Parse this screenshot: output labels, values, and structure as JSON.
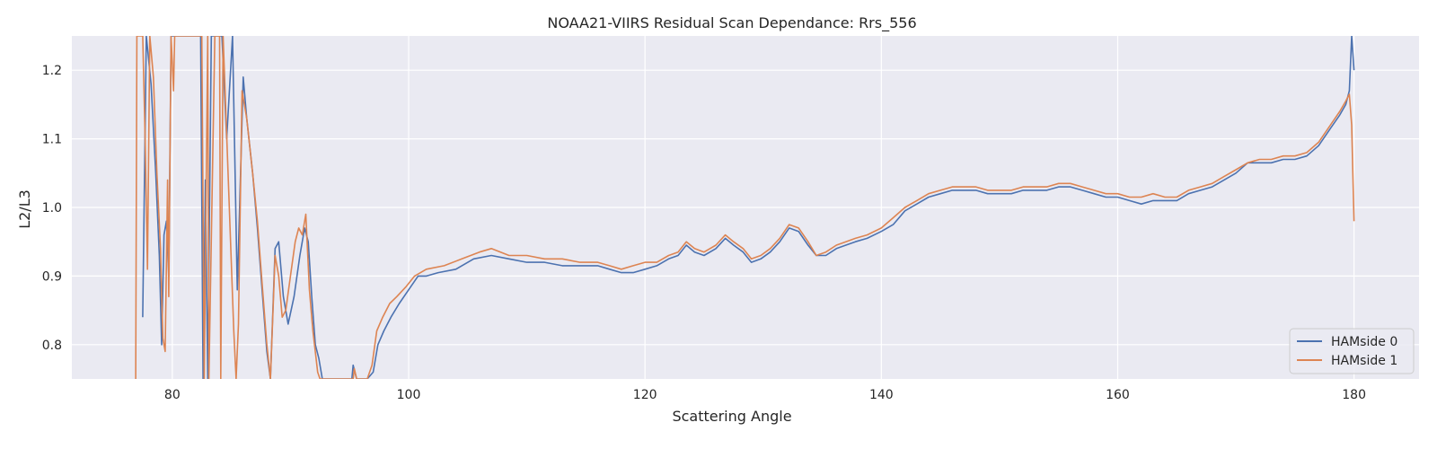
{
  "chart_data": {
    "type": "line",
    "title": "NOAA21-VIIRS Residual Scan Dependance: Rrs_556",
    "xlabel": "Scattering Angle",
    "ylabel": "L2/L3",
    "xlim": [
      71.5,
      185.5
    ],
    "ylim": [
      0.75,
      1.25
    ],
    "xticks": [
      80,
      100,
      120,
      140,
      160,
      180
    ],
    "yticks": [
      0.8,
      0.9,
      1.0,
      1.1,
      1.2
    ],
    "xtick_labels": [
      "80",
      "100",
      "120",
      "140",
      "160",
      "180"
    ],
    "ytick_labels": [
      "0.8",
      "0.9",
      "1.0",
      "1.1",
      "1.2"
    ],
    "grid": true,
    "legend_position": "lower-right",
    "background_color": "#eaeaf2",
    "series": [
      {
        "name": "HAMside 0",
        "color": "#4c72b0",
        "points": [
          [
            77.5,
            0.84
          ],
          [
            77.8,
            1.25
          ],
          [
            78.2,
            1.18
          ],
          [
            78.6,
            1.05
          ],
          [
            78.9,
            0.93
          ],
          [
            79.1,
            0.8
          ],
          [
            79.3,
            0.96
          ],
          [
            79.5,
            0.98
          ],
          [
            79.7,
            0.9
          ],
          [
            79.9,
            1.25
          ],
          [
            80.2,
            1.25
          ],
          [
            82.4,
            1.25
          ],
          [
            82.6,
            0.75
          ],
          [
            82.8,
            1.04
          ],
          [
            83.0,
            0.75
          ],
          [
            83.3,
            1.25
          ],
          [
            84.2,
            1.25
          ],
          [
            84.6,
            1.1
          ],
          [
            85.1,
            1.25
          ],
          [
            85.5,
            0.88
          ],
          [
            85.7,
            1.0
          ],
          [
            86.0,
            1.19
          ],
          [
            86.3,
            1.13
          ],
          [
            86.8,
            1.05
          ],
          [
            87.2,
            0.97
          ],
          [
            87.6,
            0.88
          ],
          [
            88.0,
            0.79
          ],
          [
            88.3,
            0.75
          ],
          [
            88.7,
            0.94
          ],
          [
            89.0,
            0.95
          ],
          [
            89.4,
            0.87
          ],
          [
            89.8,
            0.83
          ],
          [
            90.3,
            0.87
          ],
          [
            90.8,
            0.93
          ],
          [
            91.2,
            0.97
          ],
          [
            91.5,
            0.95
          ],
          [
            91.8,
            0.87
          ],
          [
            92.1,
            0.8
          ],
          [
            92.4,
            0.78
          ],
          [
            92.7,
            0.75
          ],
          [
            95.2,
            0.75
          ],
          [
            95.3,
            0.77
          ],
          [
            95.6,
            0.75
          ],
          [
            96.5,
            0.75
          ],
          [
            97.0,
            0.76
          ],
          [
            97.4,
            0.8
          ],
          [
            97.9,
            0.82
          ],
          [
            98.5,
            0.84
          ],
          [
            99.2,
            0.86
          ],
          [
            100.0,
            0.88
          ],
          [
            100.8,
            0.9
          ],
          [
            101.5,
            0.9
          ],
          [
            102.5,
            0.905
          ],
          [
            104.0,
            0.91
          ],
          [
            105.5,
            0.925
          ],
          [
            107.0,
            0.93
          ],
          [
            108.5,
            0.925
          ],
          [
            110.0,
            0.92
          ],
          [
            111.5,
            0.92
          ],
          [
            113.0,
            0.915
          ],
          [
            114.5,
            0.915
          ],
          [
            116.0,
            0.915
          ],
          [
            117.0,
            0.91
          ],
          [
            118.0,
            0.905
          ],
          [
            119.0,
            0.905
          ],
          [
            120.0,
            0.91
          ],
          [
            121.0,
            0.915
          ],
          [
            122.0,
            0.925
          ],
          [
            122.8,
            0.93
          ],
          [
            123.5,
            0.945
          ],
          [
            124.2,
            0.935
          ],
          [
            125.0,
            0.93
          ],
          [
            126.0,
            0.94
          ],
          [
            126.8,
            0.955
          ],
          [
            127.5,
            0.945
          ],
          [
            128.3,
            0.935
          ],
          [
            129.0,
            0.92
          ],
          [
            129.8,
            0.925
          ],
          [
            130.6,
            0.935
          ],
          [
            131.4,
            0.95
          ],
          [
            132.2,
            0.97
          ],
          [
            133.0,
            0.965
          ],
          [
            133.8,
            0.945
          ],
          [
            134.5,
            0.93
          ],
          [
            135.3,
            0.93
          ],
          [
            136.2,
            0.94
          ],
          [
            137.0,
            0.945
          ],
          [
            137.8,
            0.95
          ],
          [
            138.8,
            0.955
          ],
          [
            140.0,
            0.965
          ],
          [
            141.0,
            0.975
          ],
          [
            142.0,
            0.995
          ],
          [
            143.0,
            1.005
          ],
          [
            144.0,
            1.015
          ],
          [
            145.0,
            1.02
          ],
          [
            146.0,
            1.025
          ],
          [
            147.0,
            1.025
          ],
          [
            148.0,
            1.025
          ],
          [
            149.0,
            1.02
          ],
          [
            150.0,
            1.02
          ],
          [
            151.0,
            1.02
          ],
          [
            152.0,
            1.025
          ],
          [
            153.0,
            1.025
          ],
          [
            154.0,
            1.025
          ],
          [
            155.0,
            1.03
          ],
          [
            156.0,
            1.03
          ],
          [
            157.0,
            1.025
          ],
          [
            158.0,
            1.02
          ],
          [
            159.0,
            1.015
          ],
          [
            160.0,
            1.015
          ],
          [
            161.0,
            1.01
          ],
          [
            162.0,
            1.005
          ],
          [
            163.0,
            1.01
          ],
          [
            164.0,
            1.01
          ],
          [
            165.0,
            1.01
          ],
          [
            166.0,
            1.02
          ],
          [
            167.0,
            1.025
          ],
          [
            168.0,
            1.03
          ],
          [
            169.0,
            1.04
          ],
          [
            170.0,
            1.05
          ],
          [
            171.0,
            1.065
          ],
          [
            172.0,
            1.065
          ],
          [
            173.0,
            1.065
          ],
          [
            174.0,
            1.07
          ],
          [
            175.0,
            1.07
          ],
          [
            176.0,
            1.075
          ],
          [
            177.0,
            1.09
          ],
          [
            178.0,
            1.115
          ],
          [
            178.8,
            1.135
          ],
          [
            179.3,
            1.15
          ],
          [
            179.6,
            1.17
          ],
          [
            179.8,
            1.25
          ],
          [
            180.0,
            1.2
          ]
        ]
      },
      {
        "name": "HAMside 1",
        "color": "#dd8452",
        "points": [
          [
            76.9,
            0.75
          ],
          [
            77.0,
            1.25
          ],
          [
            77.5,
            1.25
          ],
          [
            77.7,
            1.1
          ],
          [
            77.9,
            0.91
          ],
          [
            78.1,
            1.25
          ],
          [
            78.4,
            1.19
          ],
          [
            78.7,
            1.05
          ],
          [
            79.0,
            0.94
          ],
          [
            79.2,
            0.81
          ],
          [
            79.4,
            0.79
          ],
          [
            79.6,
            1.04
          ],
          [
            79.7,
            0.87
          ],
          [
            79.9,
            1.25
          ],
          [
            80.1,
            1.17
          ],
          [
            80.2,
            1.25
          ],
          [
            82.5,
            1.25
          ],
          [
            82.7,
            0.75
          ],
          [
            83.0,
            1.25
          ],
          [
            83.1,
            0.75
          ],
          [
            83.6,
            1.25
          ],
          [
            84.0,
            1.25
          ],
          [
            84.1,
            0.75
          ],
          [
            84.3,
            1.25
          ],
          [
            85.2,
            0.82
          ],
          [
            85.4,
            0.75
          ],
          [
            85.6,
            0.83
          ],
          [
            85.9,
            1.17
          ],
          [
            86.3,
            1.13
          ],
          [
            86.8,
            1.05
          ],
          [
            87.2,
            0.98
          ],
          [
            87.6,
            0.89
          ],
          [
            88.0,
            0.8
          ],
          [
            88.3,
            0.75
          ],
          [
            88.7,
            0.93
          ],
          [
            89.0,
            0.9
          ],
          [
            89.3,
            0.84
          ],
          [
            89.6,
            0.85
          ],
          [
            90.0,
            0.9
          ],
          [
            90.4,
            0.95
          ],
          [
            90.7,
            0.97
          ],
          [
            91.0,
            0.96
          ],
          [
            91.3,
            0.99
          ],
          [
            91.6,
            0.88
          ],
          [
            91.9,
            0.82
          ],
          [
            92.3,
            0.76
          ],
          [
            92.5,
            0.75
          ],
          [
            95.3,
            0.75
          ],
          [
            95.4,
            0.765
          ],
          [
            95.6,
            0.75
          ],
          [
            96.5,
            0.75
          ],
          [
            96.9,
            0.77
          ],
          [
            97.3,
            0.82
          ],
          [
            97.8,
            0.84
          ],
          [
            98.4,
            0.86
          ],
          [
            99.0,
            0.87
          ],
          [
            99.8,
            0.885
          ],
          [
            100.5,
            0.9
          ],
          [
            101.5,
            0.91
          ],
          [
            103.0,
            0.915
          ],
          [
            104.5,
            0.925
          ],
          [
            106.0,
            0.935
          ],
          [
            107.0,
            0.94
          ],
          [
            108.5,
            0.93
          ],
          [
            110.0,
            0.93
          ],
          [
            111.5,
            0.925
          ],
          [
            113.0,
            0.925
          ],
          [
            114.5,
            0.92
          ],
          [
            116.0,
            0.92
          ],
          [
            117.0,
            0.915
          ],
          [
            118.0,
            0.91
          ],
          [
            119.0,
            0.915
          ],
          [
            120.0,
            0.92
          ],
          [
            121.0,
            0.92
          ],
          [
            122.0,
            0.93
          ],
          [
            122.8,
            0.935
          ],
          [
            123.5,
            0.95
          ],
          [
            124.2,
            0.94
          ],
          [
            125.0,
            0.935
          ],
          [
            126.0,
            0.945
          ],
          [
            126.8,
            0.96
          ],
          [
            127.5,
            0.95
          ],
          [
            128.3,
            0.94
          ],
          [
            129.0,
            0.925
          ],
          [
            129.8,
            0.93
          ],
          [
            130.6,
            0.94
          ],
          [
            131.4,
            0.955
          ],
          [
            132.2,
            0.975
          ],
          [
            133.0,
            0.97
          ],
          [
            133.8,
            0.95
          ],
          [
            134.5,
            0.93
          ],
          [
            135.3,
            0.935
          ],
          [
            136.2,
            0.945
          ],
          [
            137.0,
            0.95
          ],
          [
            137.8,
            0.955
          ],
          [
            138.8,
            0.96
          ],
          [
            140.0,
            0.97
          ],
          [
            141.0,
            0.985
          ],
          [
            142.0,
            1.0
          ],
          [
            143.0,
            1.01
          ],
          [
            144.0,
            1.02
          ],
          [
            145.0,
            1.025
          ],
          [
            146.0,
            1.03
          ],
          [
            147.0,
            1.03
          ],
          [
            148.0,
            1.03
          ],
          [
            149.0,
            1.025
          ],
          [
            150.0,
            1.025
          ],
          [
            151.0,
            1.025
          ],
          [
            152.0,
            1.03
          ],
          [
            153.0,
            1.03
          ],
          [
            154.0,
            1.03
          ],
          [
            155.0,
            1.035
          ],
          [
            156.0,
            1.035
          ],
          [
            157.0,
            1.03
          ],
          [
            158.0,
            1.025
          ],
          [
            159.0,
            1.02
          ],
          [
            160.0,
            1.02
          ],
          [
            161.0,
            1.015
          ],
          [
            162.0,
            1.015
          ],
          [
            163.0,
            1.02
          ],
          [
            164.0,
            1.015
          ],
          [
            165.0,
            1.015
          ],
          [
            166.0,
            1.025
          ],
          [
            167.0,
            1.03
          ],
          [
            168.0,
            1.035
          ],
          [
            169.0,
            1.045
          ],
          [
            170.0,
            1.055
          ],
          [
            171.0,
            1.065
          ],
          [
            172.0,
            1.07
          ],
          [
            173.0,
            1.07
          ],
          [
            174.0,
            1.075
          ],
          [
            175.0,
            1.075
          ],
          [
            176.0,
            1.08
          ],
          [
            177.0,
            1.095
          ],
          [
            178.0,
            1.12
          ],
          [
            178.8,
            1.14
          ],
          [
            179.3,
            1.155
          ],
          [
            179.6,
            1.165
          ],
          [
            179.8,
            1.12
          ],
          [
            180.0,
            0.98
          ]
        ]
      }
    ]
  }
}
